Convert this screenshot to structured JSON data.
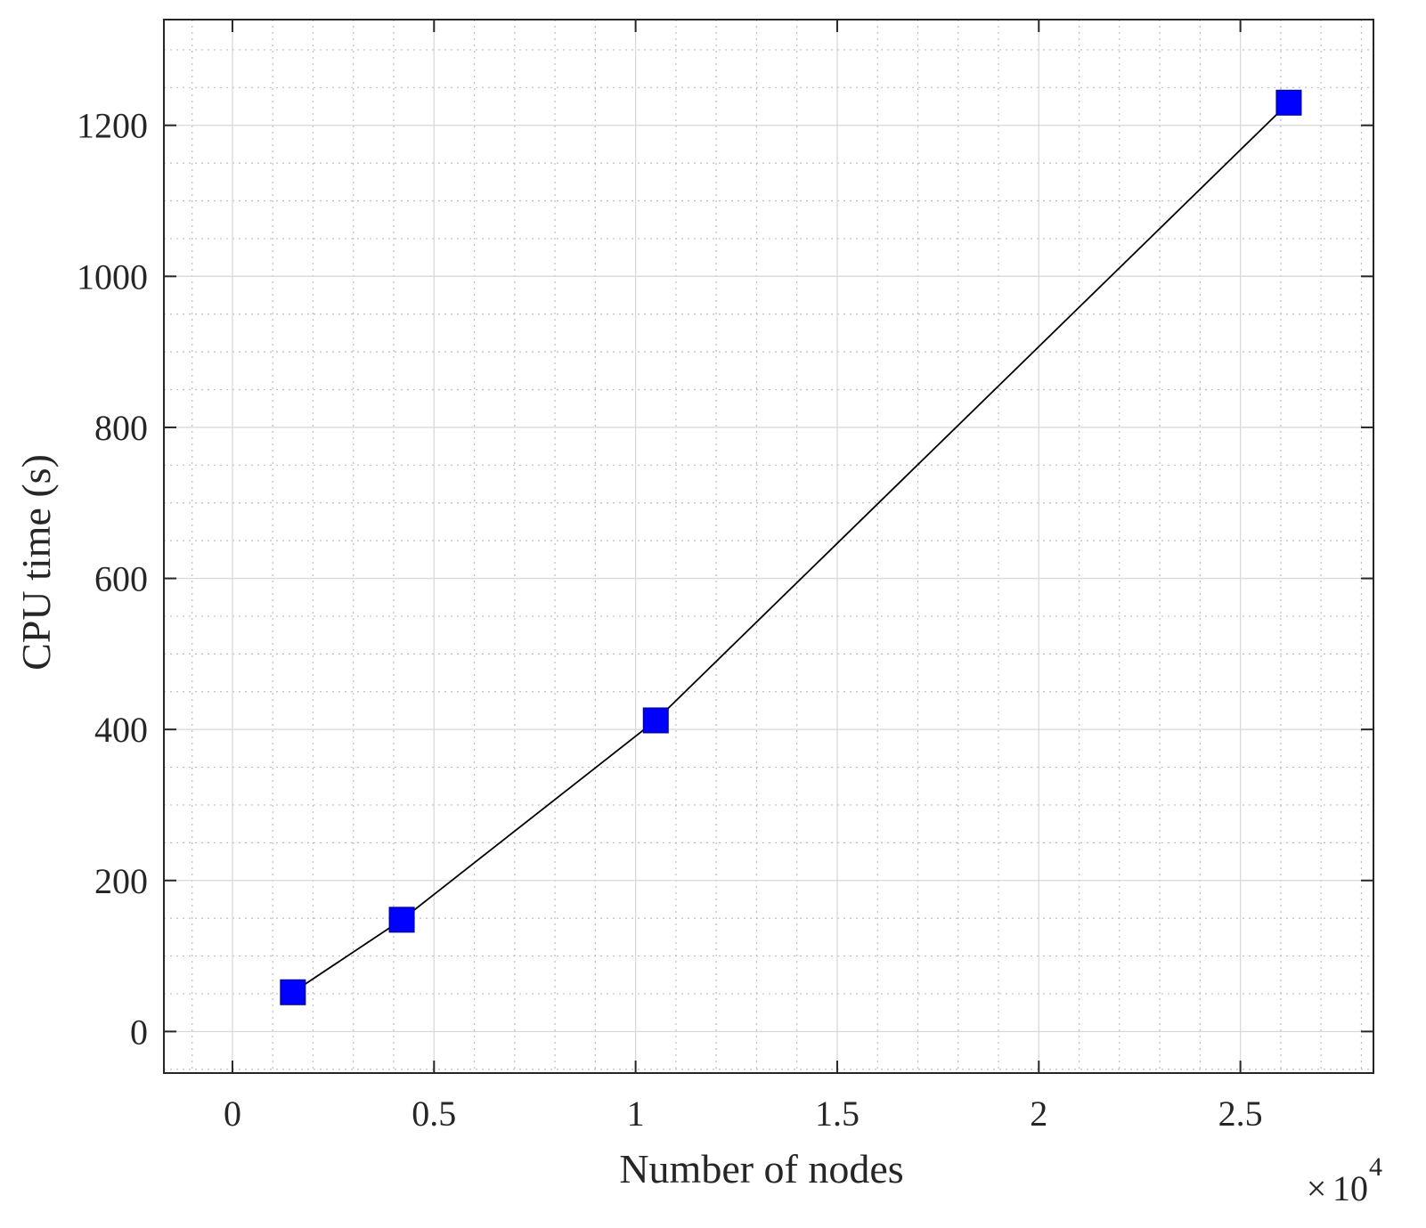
{
  "chart_data": {
    "type": "line",
    "title": "",
    "xlabel": "Number of nodes",
    "ylabel": "CPU time (s)",
    "x_exponent": {
      "times": "×",
      "base": "10",
      "power": "4"
    },
    "xlim": [
      -0.17,
      2.83
    ],
    "ylim": [
      -55,
      1340
    ],
    "x_ticks": [
      0,
      0.5,
      1,
      1.5,
      2,
      2.5
    ],
    "x_tick_labels": [
      "0",
      "0.5",
      "1",
      "1.5",
      "2",
      "2.5"
    ],
    "y_ticks": [
      0,
      200,
      400,
      600,
      800,
      1000,
      1200
    ],
    "y_tick_labels": [
      "0",
      "200",
      "400",
      "600",
      "800",
      "1000",
      "1200"
    ],
    "grid": true,
    "minor_grid": true,
    "series": [
      {
        "x": [
          0.15,
          0.42,
          1.05,
          2.62
        ],
        "y": [
          52,
          148,
          412,
          1230
        ],
        "line_color": "#000000",
        "marker": "square",
        "marker_color": "#0000ff"
      }
    ]
  }
}
